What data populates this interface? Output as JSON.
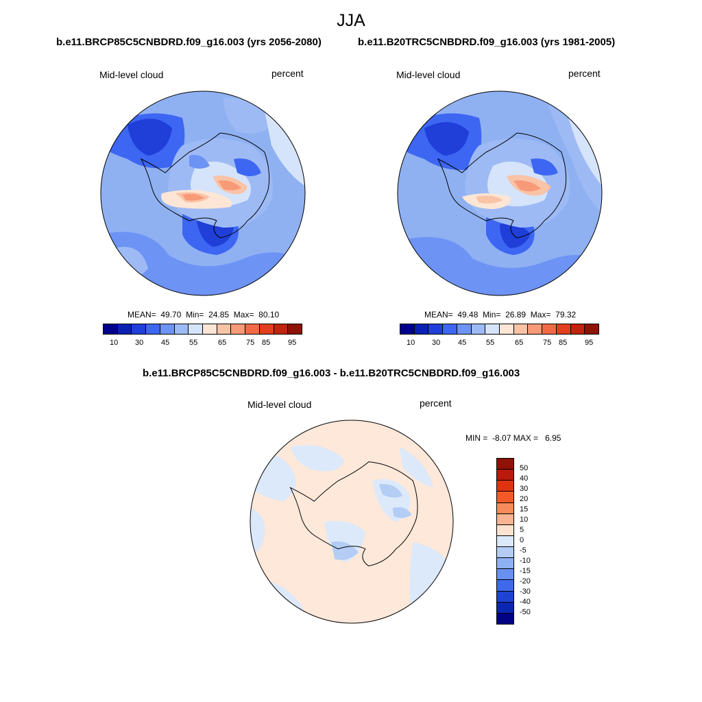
{
  "title": "JJA",
  "panels": [
    {
      "run_title": "b.e11.BRCP85C5CNBDRD.f09_g16.003 (yrs 2056-2080)",
      "variable": "Mid-level cloud",
      "units": "percent",
      "stats": {
        "mean_label": "MEAN=",
        "mean": "49.70",
        "min_label": "Min=",
        "min": "24.85",
        "max_label": "Max=",
        "max": "80.10"
      },
      "colorbar_labels": [
        "10",
        "30",
        "45",
        "55",
        "65",
        "75",
        "85",
        "95"
      ]
    },
    {
      "run_title": "b.e11.B20TRC5CNBDRD.f09_g16.003 (yrs 1981-2005)",
      "variable": "Mid-level cloud",
      "units": "percent",
      "stats": {
        "mean_label": "MEAN=",
        "mean": "49.48",
        "min_label": "Min=",
        "min": "26.89",
        "max_label": "Max=",
        "max": "79.32"
      },
      "colorbar_labels": [
        "10",
        "30",
        "45",
        "55",
        "65",
        "75",
        "85",
        "95"
      ]
    }
  ],
  "difference": {
    "title": "b.e11.BRCP85C5CNBDRD.f09_g16.003 - b.e11.B20TRC5CNBDRD.f09_g16.003",
    "variable": "Mid-level cloud",
    "units": "percent",
    "stats": {
      "min_label": "MIN =",
      "min": "-8.07",
      "max_label": "MAX =",
      "max": "6.95"
    },
    "colorbar_labels": [
      "50",
      "40",
      "30",
      "20",
      "15",
      "10",
      "5",
      "0",
      "-5",
      "-10",
      "-15",
      "-20",
      "-30",
      "-40",
      "-50"
    ]
  },
  "colors": {
    "abs_scale": [
      "#00008b",
      "#0a21b4",
      "#1f3fd8",
      "#3d66f2",
      "#6d93f5",
      "#9dbaf5",
      "#d5e4fb",
      "#fde6d6",
      "#f9c3a6",
      "#f79a78",
      "#f26a45",
      "#e0401e",
      "#c1240f",
      "#8e1206"
    ],
    "diff_scale": [
      "#8e1206",
      "#b81a0c",
      "#de3510",
      "#f45a28",
      "#f58a5a",
      "#f8b493",
      "#fde3cf",
      "#dce9fa",
      "#b3cdf5",
      "#8eb1f3",
      "#6890f0",
      "#3f69e8",
      "#1f43d2",
      "#0b27b0",
      "#010386"
    ],
    "ocean_base": "#8fb1f2",
    "diff_base": "#fde8da"
  }
}
